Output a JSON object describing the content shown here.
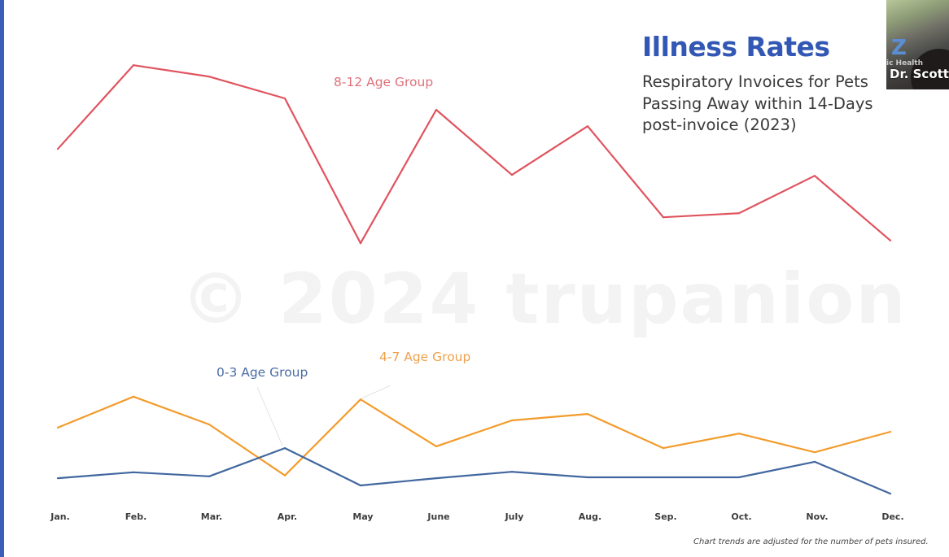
{
  "slide": {
    "title": "Illness Rates",
    "subtitle_lines": [
      "Respiratory Invoices for Pets",
      "Passing Away within 14-Days",
      "post-invoice (2023)"
    ],
    "footnote": "Chart trends are adjusted for the number of pets insured.",
    "watermark": "© 2024 trupanion",
    "accent_color": "#3257b4"
  },
  "video_tile": {
    "participant_name": "Dr. Scott",
    "background_text": "ic Health",
    "logo_letter": "Z"
  },
  "chart_data": {
    "type": "line",
    "title": "Illness Rates",
    "subtitle": "Respiratory Invoices for Pets Passing Away within 14-Days post-invoice (2023)",
    "xlabel": "",
    "ylabel": "",
    "y_axis_shown": false,
    "y_units": "relative index (no axis shown; estimated 0-100 scale)",
    "ylim": [
      0,
      100
    ],
    "grid": false,
    "legend": "inline labels",
    "categories": [
      "Jan.",
      "Feb.",
      "Mar.",
      "Apr.",
      "May",
      "June",
      "July",
      "Aug.",
      "Sep.",
      "Oct.",
      "Nov.",
      "Dec."
    ],
    "series": [
      {
        "name": "8-12 Age Group",
        "color": "#e0535e",
        "label_color": "#e0707a",
        "values": [
          78.0,
          96.4,
          93.9,
          89.1,
          57.3,
          86.6,
          72.3,
          83.0,
          63.0,
          63.9,
          72.1,
          57.9
        ]
      },
      {
        "name": "4-7 Age Group",
        "color": "#f39b2b",
        "label_color": "#f0a04b",
        "values": [
          16.8,
          23.6,
          17.5,
          6.3,
          23.0,
          12.7,
          18.4,
          19.8,
          12.3,
          15.5,
          11.4,
          15.9
        ]
      },
      {
        "name": "0-3 Age Group",
        "color": "#41679f",
        "label_color": "#4a6ca6",
        "values": [
          5.7,
          7.0,
          6.1,
          12.3,
          4.1,
          5.7,
          7.1,
          5.9,
          5.9,
          5.9,
          9.3,
          2.3
        ]
      }
    ],
    "annotations": [
      {
        "text": "8-12 Age Group",
        "series": "8-12 Age Group",
        "near_category": "Apr."
      },
      {
        "text": "4-7 Age Group",
        "series": "4-7 Age Group",
        "near_category": "May",
        "leader_line": true
      },
      {
        "text": "0-3 Age Group",
        "series": "0-3 Age Group",
        "near_category": "Apr.",
        "leader_line": true
      }
    ]
  }
}
